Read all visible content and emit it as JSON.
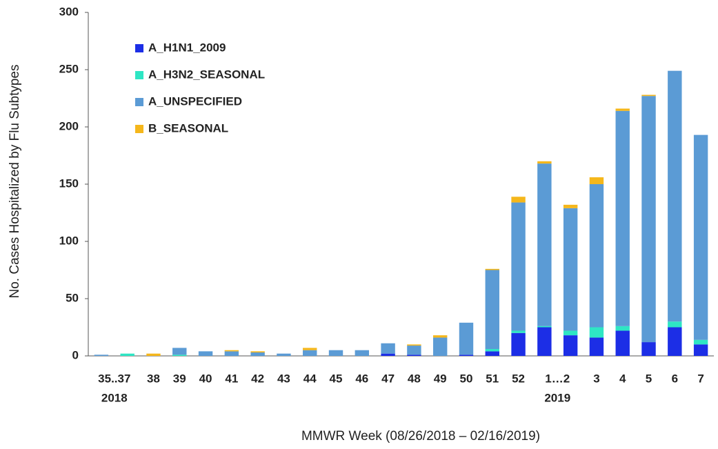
{
  "chart_data": {
    "type": "stacked-bar",
    "x_label": "MMWR Week (08/26/2018 – 02/16/2019)",
    "y_label": "No. Cases Hospitalized by Flu Subtypes",
    "categories": [
      "35..37",
      null,
      "38",
      "39",
      "40",
      "41",
      "42",
      "43",
      "44",
      "45",
      "46",
      "47",
      "48",
      "49",
      "50",
      "51",
      "52",
      "1…2",
      null,
      "3",
      "4",
      "5",
      "6",
      "7"
    ],
    "year_labels": [
      "2018",
      null,
      null,
      null,
      null,
      null,
      null,
      null,
      null,
      null,
      null,
      null,
      null,
      null,
      null,
      null,
      null,
      "2019",
      null,
      null,
      null,
      null,
      null,
      null
    ],
    "series": [
      {
        "name": "A_H1N1_2009",
        "color": "#1c2ee6",
        "values": [
          0,
          0,
          0,
          0,
          0,
          0,
          0,
          0,
          0,
          0,
          0,
          2,
          1,
          0,
          1,
          4,
          20,
          25,
          18,
          16,
          22,
          12,
          25,
          10
        ]
      },
      {
        "name": "A_H3N2_SEASONAL",
        "color": "#2ee6c4",
        "values": [
          0,
          2,
          0,
          1,
          0,
          0,
          0,
          0,
          0,
          0,
          0,
          0,
          0,
          0,
          0,
          2,
          2,
          1,
          4,
          9,
          4,
          0,
          5,
          4
        ]
      },
      {
        "name": "A_UNSPECIFIED",
        "color": "#5b9bd5",
        "values": [
          1,
          0,
          0,
          6,
          4,
          4,
          3,
          2,
          5,
          5,
          5,
          9,
          8,
          16,
          28,
          69,
          112,
          142,
          107,
          125,
          188,
          215,
          219,
          179
        ]
      },
      {
        "name": "B_SEASONAL",
        "color": "#f5b71b",
        "values": [
          0,
          0,
          2,
          0,
          0,
          1,
          1,
          0,
          2,
          0,
          0,
          0,
          1,
          2,
          0,
          1,
          5,
          2,
          3,
          6,
          2,
          1,
          0,
          0
        ]
      }
    ],
    "ylim": [
      0,
      300
    ],
    "yticks": [
      0,
      50,
      100,
      150,
      200,
      250,
      300
    ],
    "grid": false,
    "legend": "upper-left"
  }
}
